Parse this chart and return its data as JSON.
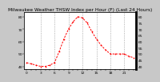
{
  "title": "Milwaukee Weather THSW Index per Hour (F) (Last 24 Hours)",
  "hours": [
    0,
    1,
    2,
    3,
    4,
    5,
    6,
    7,
    8,
    9,
    10,
    11,
    12,
    13,
    14,
    15,
    16,
    17,
    18,
    19,
    20,
    21,
    22,
    23
  ],
  "values": [
    43,
    42,
    41,
    40,
    40,
    41,
    43,
    52,
    62,
    70,
    76,
    80,
    79,
    75,
    68,
    62,
    57,
    53,
    50,
    50,
    50,
    50,
    48,
    47
  ],
  "line_color": "#ff0000",
  "bg_color": "#c8c8c8",
  "plot_bg": "#ffffff",
  "grid_color": "#888888",
  "ylim": [
    38,
    84
  ],
  "yticks_left": [
    40,
    50,
    60,
    70,
    80
  ],
  "yticks_right": [
    40,
    45,
    50,
    55,
    60,
    65,
    70,
    75,
    80
  ],
  "title_color": "#000000",
  "tick_color": "#000000",
  "title_fontsize": 4.2,
  "tick_fontsize": 3.2,
  "vline_hours": [
    3,
    6,
    9,
    12,
    15,
    18,
    21
  ]
}
